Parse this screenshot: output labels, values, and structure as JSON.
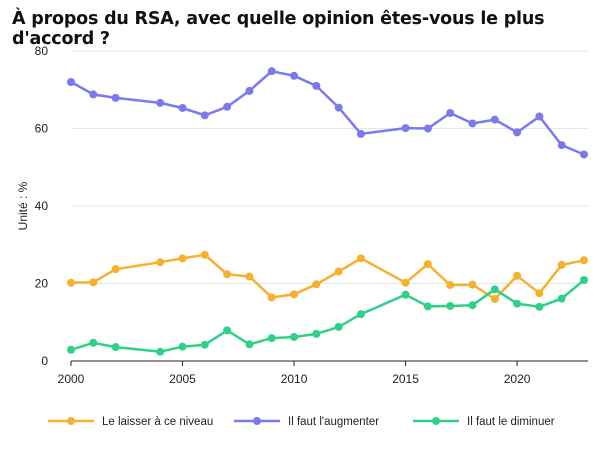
{
  "chart_data": {
    "type": "line",
    "title": "À propos du RSA, avec quelle opinion êtes-vous le plus d'accord ?",
    "ylabel": "Unité : %",
    "xlabel": "",
    "xlim": [
      2000,
      2023
    ],
    "ylim": [
      0,
      80
    ],
    "x_ticks": [
      2000,
      2005,
      2010,
      2015,
      2020
    ],
    "y_ticks": [
      0,
      20,
      40,
      60,
      80
    ],
    "grid": "horizontal",
    "legend_position": "bottom",
    "series": [
      {
        "name": "Le laisser à ce niveau",
        "color": "#f7b02e",
        "points": [
          [
            2000,
            20.2
          ],
          [
            2001,
            20.3
          ],
          [
            2002,
            23.7
          ],
          [
            2004,
            25.5
          ],
          [
            2005,
            26.5
          ],
          [
            2006,
            27.4
          ],
          [
            2007,
            22.4
          ],
          [
            2008,
            21.8
          ],
          [
            2009,
            16.4
          ],
          [
            2010,
            17.2
          ],
          [
            2011,
            19.8
          ],
          [
            2012,
            23.1
          ],
          [
            2013,
            26.5
          ],
          [
            2015,
            20.2
          ],
          [
            2016,
            25.0
          ],
          [
            2017,
            19.6
          ],
          [
            2018,
            19.7
          ],
          [
            2019,
            16.0
          ],
          [
            2020,
            22.0
          ],
          [
            2021,
            17.5
          ],
          [
            2022,
            24.8
          ],
          [
            2023,
            26.0
          ]
        ]
      },
      {
        "name": "Il faut l'augmenter",
        "color": "#7b79ee",
        "points": [
          [
            2000,
            72.0
          ],
          [
            2001,
            68.8
          ],
          [
            2002,
            67.9
          ],
          [
            2004,
            66.6
          ],
          [
            2005,
            65.3
          ],
          [
            2006,
            63.4
          ],
          [
            2007,
            65.6
          ],
          [
            2008,
            69.7
          ],
          [
            2009,
            74.8
          ],
          [
            2010,
            73.6
          ],
          [
            2011,
            71.0
          ],
          [
            2012,
            65.4
          ],
          [
            2013,
            58.6
          ],
          [
            2015,
            60.1
          ],
          [
            2016,
            60.0
          ],
          [
            2017,
            64.0
          ],
          [
            2018,
            61.3
          ],
          [
            2019,
            62.3
          ],
          [
            2020,
            59.0
          ],
          [
            2021,
            63.1
          ],
          [
            2022,
            55.7
          ],
          [
            2023,
            53.3
          ]
        ]
      },
      {
        "name": "Il faut le diminuer",
        "color": "#2fd08a",
        "points": [
          [
            2000,
            2.9
          ],
          [
            2001,
            4.7
          ],
          [
            2002,
            3.6
          ],
          [
            2004,
            2.4
          ],
          [
            2005,
            3.7
          ],
          [
            2006,
            4.2
          ],
          [
            2007,
            7.9
          ],
          [
            2008,
            4.3
          ],
          [
            2009,
            5.9
          ],
          [
            2010,
            6.2
          ],
          [
            2011,
            7.0
          ],
          [
            2012,
            8.8
          ],
          [
            2013,
            12.1
          ],
          [
            2015,
            17.1
          ],
          [
            2016,
            14.1
          ],
          [
            2017,
            14.2
          ],
          [
            2018,
            14.4
          ],
          [
            2019,
            18.5
          ],
          [
            2020,
            14.8
          ],
          [
            2021,
            14.0
          ],
          [
            2022,
            16.1
          ],
          [
            2023,
            20.9
          ]
        ]
      }
    ]
  }
}
